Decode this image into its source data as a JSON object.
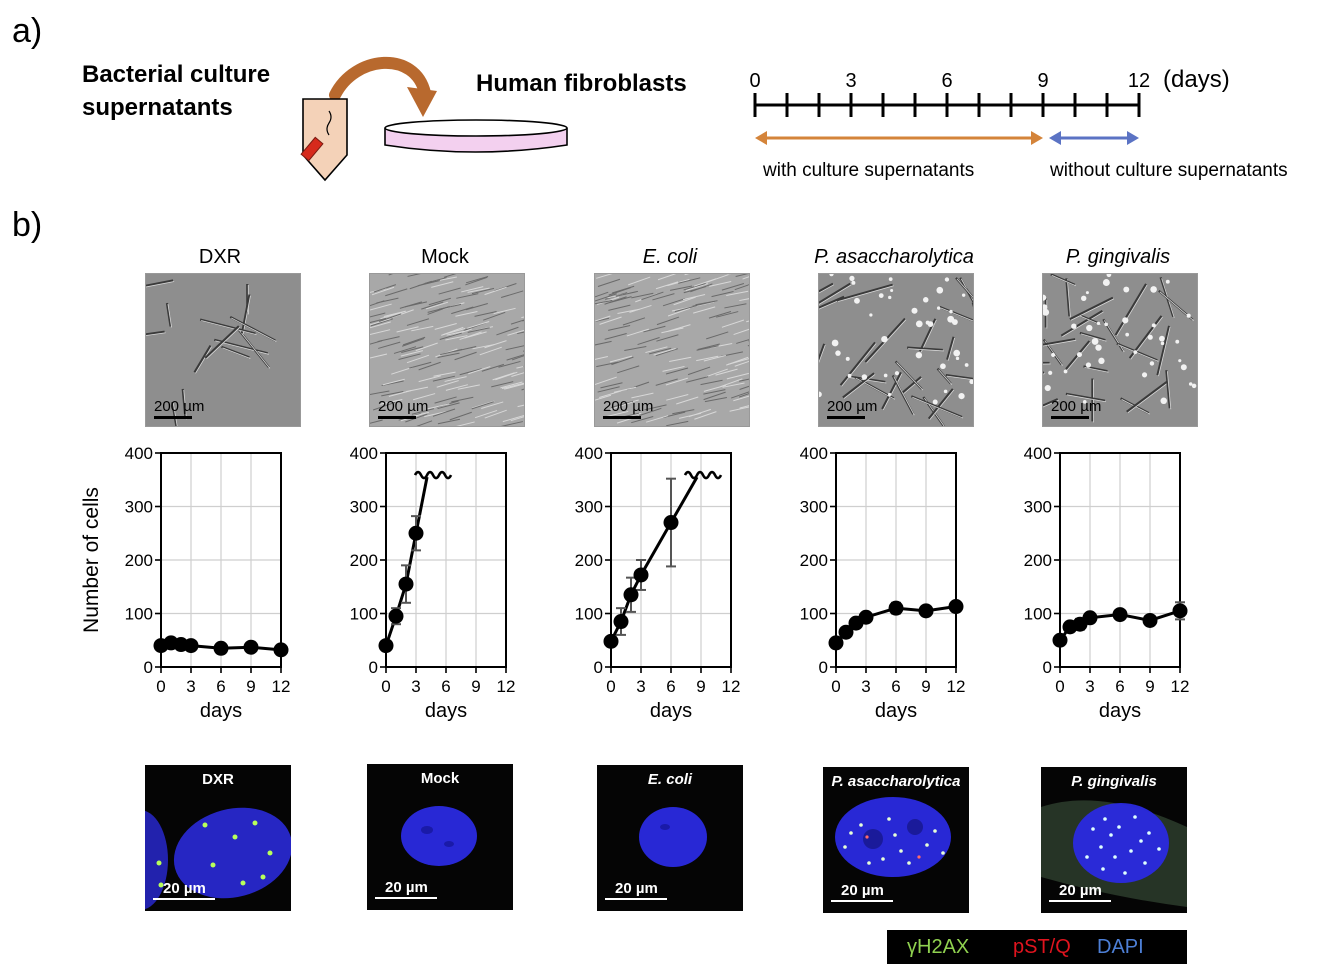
{
  "panel_a": {
    "label": "a)",
    "source_label_line1": "Bacterial culture",
    "source_label_line2": "supernatants",
    "target_label": "Human fibroblasts",
    "timeline": {
      "ticks": [
        "0",
        "3",
        "6",
        "9",
        "12"
      ],
      "unit": "(days)",
      "phase_with": "with culture supernatants",
      "phase_without": "without culture supernatants",
      "colors": {
        "with": "#d4843a",
        "without": "#5b73c4"
      }
    }
  },
  "panel_b": {
    "label": "b)",
    "columns": [
      {
        "title": "DXR",
        "italic": false
      },
      {
        "title": "Mock",
        "italic": false
      },
      {
        "title": "E. coli",
        "italic": true
      },
      {
        "title": "P. asaccharolytica",
        "italic": true
      },
      {
        "title": "P. gingivalis",
        "italic": true
      }
    ],
    "micrograph_scale": "200 µm",
    "fluorescence_scale": "20 µm",
    "legend": {
      "items": [
        {
          "text": "γH2AX",
          "color": "#8fd14f"
        },
        {
          "text": "pST/Q",
          "color": "#e0141e"
        },
        {
          "text": "DAPI",
          "color": "#4d7fd6"
        }
      ]
    }
  },
  "chart_data": [
    {
      "type": "line",
      "panel": "DXR",
      "xlabel": "days",
      "ylabel": "Number of cells",
      "xticks": [
        0,
        3,
        6,
        9,
        12
      ],
      "yticks": [
        0,
        100,
        200,
        300,
        400
      ],
      "xlim": [
        0,
        12
      ],
      "ylim": [
        0,
        400
      ],
      "grid": true,
      "x": [
        0,
        1,
        2,
        3,
        6,
        9,
        12
      ],
      "y": [
        40,
        45,
        42,
        40,
        35,
        37,
        32
      ],
      "err": [
        0,
        0,
        0,
        0,
        0,
        0,
        0
      ],
      "break": false
    },
    {
      "type": "line",
      "panel": "Mock",
      "xlabel": "days",
      "ylabel": "",
      "xticks": [
        0,
        3,
        6,
        9,
        12
      ],
      "yticks": [
        0,
        100,
        200,
        300,
        400
      ],
      "xlim": [
        0,
        12
      ],
      "ylim": [
        0,
        400
      ],
      "grid": true,
      "x": [
        0,
        1,
        2,
        3
      ],
      "y": [
        40,
        95,
        155,
        250
      ],
      "err": [
        0,
        15,
        35,
        32
      ],
      "break": true
    },
    {
      "type": "line",
      "panel": "E. coli",
      "xlabel": "days",
      "ylabel": "",
      "xticks": [
        0,
        3,
        6,
        9,
        12
      ],
      "yticks": [
        0,
        100,
        200,
        300,
        400
      ],
      "xlim": [
        0,
        12
      ],
      "ylim": [
        0,
        400
      ],
      "grid": true,
      "x": [
        0,
        1,
        2,
        3,
        6
      ],
      "y": [
        48,
        85,
        135,
        172,
        270
      ],
      "err": [
        0,
        25,
        32,
        28,
        82
      ],
      "break": true
    },
    {
      "type": "line",
      "panel": "P. asaccharolytica",
      "xlabel": "days",
      "ylabel": "",
      "xticks": [
        0,
        3,
        6,
        9,
        12
      ],
      "yticks": [
        0,
        100,
        200,
        300,
        400
      ],
      "xlim": [
        0,
        12
      ],
      "ylim": [
        0,
        400
      ],
      "grid": true,
      "x": [
        0,
        1,
        2,
        3,
        6,
        9,
        12
      ],
      "y": [
        45,
        65,
        82,
        93,
        110,
        105,
        113
      ],
      "err": [
        0,
        6,
        6,
        6,
        10,
        6,
        6
      ],
      "break": false
    },
    {
      "type": "line",
      "panel": "P. gingivalis",
      "xlabel": "days",
      "ylabel": "",
      "xticks": [
        0,
        3,
        6,
        9,
        12
      ],
      "yticks": [
        0,
        100,
        200,
        300,
        400
      ],
      "xlim": [
        0,
        12
      ],
      "ylim": [
        0,
        400
      ],
      "grid": true,
      "x": [
        0,
        1,
        2,
        3,
        6,
        9,
        12
      ],
      "y": [
        50,
        75,
        80,
        92,
        98,
        87,
        105
      ],
      "err": [
        0,
        8,
        10,
        8,
        6,
        6,
        16
      ],
      "break": false
    }
  ]
}
